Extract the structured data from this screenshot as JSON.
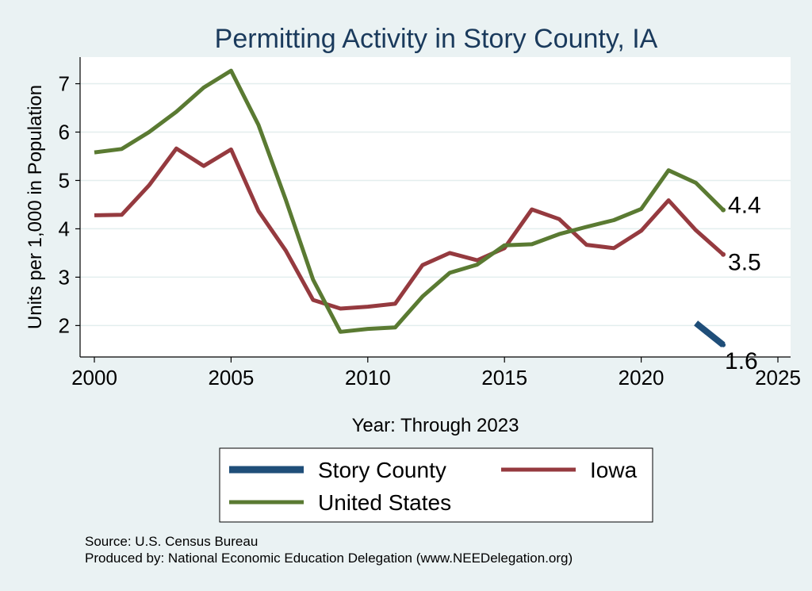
{
  "chart_data": {
    "type": "line",
    "title": "Permitting Activity in Story County, IA",
    "xlabel": "Year: Through 2023",
    "ylabel": "Units per 1,000 in Population",
    "xlim": [
      2000,
      2025
    ],
    "ylim": [
      1.35,
      7.55
    ],
    "x_ticks": [
      "2000",
      "2005",
      "2010",
      "2015",
      "2020",
      "2025"
    ],
    "y_ticks": [
      "2",
      "3",
      "4",
      "5",
      "6",
      "7"
    ],
    "grid": true,
    "legend_position": "bottom",
    "series": [
      {
        "name": "Story County",
        "color": "#1f4e79",
        "x": [
          2022,
          2023
        ],
        "values": [
          2.05,
          1.6
        ],
        "end_label": "1.6"
      },
      {
        "name": "Iowa",
        "color": "#953a3f",
        "x": [
          2000,
          2001,
          2002,
          2003,
          2004,
          2005,
          2006,
          2007,
          2008,
          2009,
          2010,
          2011,
          2012,
          2013,
          2014,
          2015,
          2016,
          2017,
          2018,
          2019,
          2020,
          2021,
          2022,
          2023
        ],
        "values": [
          4.28,
          4.29,
          4.9,
          5.66,
          5.3,
          5.64,
          4.37,
          3.55,
          2.53,
          2.35,
          2.39,
          2.45,
          3.25,
          3.5,
          3.35,
          3.6,
          4.4,
          4.2,
          3.67,
          3.6,
          3.96,
          4.59,
          3.97,
          3.47
        ],
        "end_label": "3.5"
      },
      {
        "name": "United States",
        "color": "#5a7a32",
        "x": [
          2000,
          2001,
          2002,
          2003,
          2004,
          2005,
          2006,
          2007,
          2008,
          2009,
          2010,
          2011,
          2012,
          2013,
          2014,
          2015,
          2016,
          2017,
          2018,
          2019,
          2020,
          2021,
          2022,
          2023
        ],
        "values": [
          5.58,
          5.65,
          6.0,
          6.42,
          6.92,
          7.27,
          6.15,
          4.6,
          2.95,
          1.87,
          1.93,
          1.96,
          2.6,
          3.09,
          3.26,
          3.66,
          3.68,
          3.89,
          4.04,
          4.18,
          4.41,
          5.21,
          4.95,
          4.39
        ],
        "end_label": "4.4"
      }
    ],
    "legend_order": [
      "Story County",
      "Iowa",
      "United States"
    ]
  },
  "notes": {
    "source": "Source: U.S. Census Bureau",
    "produced_by": "Produced by: National Economic Education Delegation (www.NEEDelegation.org)"
  }
}
